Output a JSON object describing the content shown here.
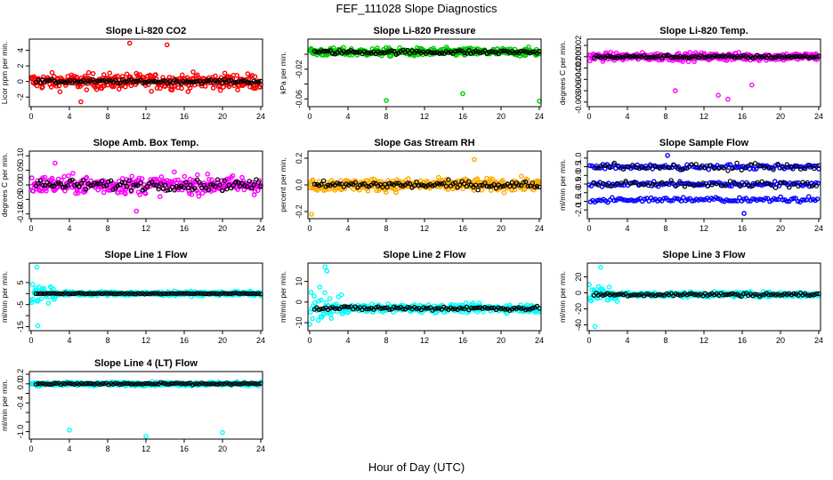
{
  "figure": {
    "title": "FEF_111028  Slope Diagnostics",
    "xlabel": "Hour of Day (UTC)"
  },
  "chart_data": [
    {
      "type": "scatter",
      "title": "Slope Li-820 CO2",
      "ylabel": "Licor ppm per min.",
      "xlim": [
        0,
        24
      ],
      "xticks": [
        0,
        4,
        8,
        12,
        16,
        20,
        24
      ],
      "ylim": [
        -3,
        5.2
      ],
      "yticks": [
        -2,
        0,
        2,
        4
      ],
      "ytick_labels": [
        "-2",
        "0",
        "2",
        "4"
      ],
      "color": "#ff0000",
      "center": 0,
      "spread": 1.3,
      "outliers": [
        [
          10.3,
          4.9
        ],
        [
          14.2,
          4.7
        ],
        [
          5.2,
          -2.6
        ]
      ],
      "black_spread": 0.35
    },
    {
      "type": "scatter",
      "title": "Slope Li-820 Pressure",
      "ylabel": "kPa per min.",
      "xlim": [
        0,
        24
      ],
      "xticks": [
        0,
        4,
        8,
        12,
        16,
        20,
        24
      ],
      "ylim": [
        -0.068,
        0.018
      ],
      "yticks": [
        -0.06,
        -0.04,
        -0.02,
        0
      ],
      "ytick_labels": [
        "-0.06",
        "",
        "-0.02",
        ""
      ],
      "color": "#00cc00",
      "center": 0.003,
      "spread": 0.007,
      "outliers": [
        [
          8,
          -0.062
        ],
        [
          16,
          -0.053
        ],
        [
          24,
          -0.063
        ]
      ],
      "black_spread": 0.004
    },
    {
      "type": "scatter",
      "title": "Slope Li-820 Temp.",
      "ylabel": "degrees C per min.",
      "xlim": [
        0,
        24
      ],
      "xticks": [
        0,
        4,
        8,
        12,
        16,
        20,
        24
      ],
      "ylim": [
        -0.0085,
        0.0028
      ],
      "yticks": [
        -0.008,
        -0.006,
        -0.004,
        -0.002,
        0,
        0.002
      ],
      "ytick_labels": [
        "-0.008",
        "-0.006",
        "-0.004",
        "-0.002",
        "0.000",
        "0.002"
      ],
      "color": "#ff00ff",
      "center": 0,
      "spread": 0.0009,
      "outliers": [
        [
          14.5,
          -0.0075
        ],
        [
          13.5,
          -0.0068
        ],
        [
          9,
          -0.006
        ],
        [
          17,
          -0.005
        ]
      ],
      "black_spread": 0.0004
    },
    {
      "type": "scatter",
      "title": "Slope Amb. Box Temp.",
      "ylabel": "degrees C per min.",
      "xlim": [
        0,
        24
      ],
      "xticks": [
        0,
        4,
        8,
        12,
        16,
        20,
        24
      ],
      "ylim": [
        -0.11,
        0.11
      ],
      "yticks": [
        -0.1,
        -0.05,
        0,
        0.05,
        0.1
      ],
      "ytick_labels": [
        "-0.10",
        "-0.05",
        "0.00",
        "0.05",
        "0.10"
      ],
      "color": "#ff00ff",
      "center": 0,
      "spread": 0.04,
      "outliers": [
        [
          11,
          -0.09
        ],
        [
          2.5,
          0.075
        ]
      ],
      "black_spread": 0.025
    },
    {
      "type": "scatter",
      "title": "Slope Gas Stream RH",
      "ylabel": "percent per min.",
      "xlim": [
        0,
        24
      ],
      "xticks": [
        0,
        4,
        8,
        12,
        16,
        20,
        24
      ],
      "ylim": [
        -0.24,
        0.24
      ],
      "yticks": [
        -0.2,
        0,
        0.2
      ],
      "ytick_labels": [
        "-0.2",
        "0.0",
        "0.2"
      ],
      "color": "#ffaa00",
      "center": 0,
      "spread": 0.06,
      "outliers": [
        [
          0.2,
          -0.22
        ],
        [
          17.2,
          0.19
        ]
      ],
      "black_spread": 0.04
    },
    {
      "type": "scatter",
      "title": "Slope Sample Flow",
      "ylabel": "ml/min per min.",
      "xlim": [
        0,
        24
      ],
      "xticks": [
        0,
        4,
        8,
        12,
        16,
        20,
        24
      ],
      "ylim": [
        -2.4,
        1.3
      ],
      "yticks": [
        -2,
        -1.5,
        -1,
        -0.5,
        0,
        0.5,
        1
      ],
      "ytick_labels": [
        "-2.0",
        "-1.5",
        "-1.0",
        "-0.5",
        "0.0",
        "0.5",
        "1.0"
      ],
      "color": "#0000ff",
      "center": 0,
      "spread": 0.3,
      "bands": [
        -0.5,
        0.5,
        -1.4
      ],
      "outliers": [
        [
          8.2,
          1.15
        ],
        [
          16.2,
          -2.2
        ]
      ],
      "black_spread": 0.3
    },
    {
      "type": "scatter",
      "title": "Slope Line 1 Flow",
      "ylabel": "ml/min per min.",
      "xlim": [
        0,
        24
      ],
      "xticks": [
        0,
        4,
        8,
        12,
        16,
        20,
        24
      ],
      "ylim": [
        -16,
        13
      ],
      "yticks": [
        -15,
        -10,
        -5,
        0,
        5
      ],
      "ytick_labels": [
        "-15",
        "",
        "-5",
        "",
        "5"
      ],
      "color": "#00ffff",
      "center": 0,
      "spread": 1.2,
      "burst": [
        0,
        2.5,
        6
      ],
      "outliers": [
        [
          0.6,
          12
        ],
        [
          0.7,
          -14.5
        ]
      ],
      "black_spread": 0.3
    },
    {
      "type": "scatter",
      "title": "Slope Line 2 Flow",
      "ylabel": "ml/min per min.",
      "xlim": [
        0,
        24
      ],
      "xticks": [
        0,
        4,
        8,
        12,
        16,
        20,
        24
      ],
      "ylim": [
        -13,
        18
      ],
      "yticks": [
        -10,
        0,
        10
      ],
      "ytick_labels": [
        "-10",
        "0",
        "10"
      ],
      "color": "#00ffff",
      "center": -3,
      "spread": 2.5,
      "burst": [
        0,
        3.5,
        9
      ],
      "outliers": [
        [
          1.6,
          17
        ],
        [
          1.8,
          15
        ]
      ],
      "black_spread": 1.5
    },
    {
      "type": "scatter",
      "title": "Slope Line 3 Flow",
      "ylabel": "ml/min per min.",
      "xlim": [
        0,
        24
      ],
      "xticks": [
        0,
        4,
        8,
        12,
        16,
        20,
        24
      ],
      "ylim": [
        -45,
        35
      ],
      "yticks": [
        -40,
        -20,
        0,
        20
      ],
      "ytick_labels": [
        "-40",
        "-20",
        "0",
        "20"
      ],
      "color": "#00ffff",
      "center": -2,
      "spread": 4,
      "burst": [
        0,
        3,
        14
      ],
      "outliers": [
        [
          1.2,
          32
        ],
        [
          0.6,
          -42
        ]
      ],
      "black_spread": 3
    },
    {
      "type": "scatter",
      "title": "Slope Line 4 (LT) Flow",
      "ylabel": "ml/min per min.",
      "xlim": [
        0,
        24
      ],
      "xticks": [
        0,
        4,
        8,
        12,
        16,
        20,
        24
      ],
      "ylim": [
        -1.12,
        0.22
      ],
      "yticks": [
        -1,
        -0.8,
        -0.6,
        -0.4,
        -0.2,
        0,
        0.2
      ],
      "ytick_labels": [
        "-1.0",
        "",
        "",
        "-0.4",
        "",
        "0.0",
        "0.2"
      ],
      "color": "#00ffff",
      "center": 0,
      "spread": 0.05,
      "outliers": [
        [
          4,
          -0.97
        ],
        [
          12,
          -1.1
        ],
        [
          20,
          -1.02
        ]
      ],
      "black_spread": 0.03
    }
  ]
}
